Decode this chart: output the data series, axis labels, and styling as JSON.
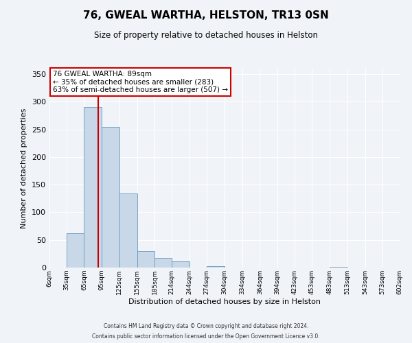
{
  "title": "76, GWEAL WARTHA, HELSTON, TR13 0SN",
  "subtitle": "Size of property relative to detached houses in Helston",
  "xlabel": "Distribution of detached houses by size in Helston",
  "ylabel": "Number of detached properties",
  "bin_edges": [
    6,
    35,
    65,
    95,
    125,
    155,
    185,
    214,
    244,
    274,
    304,
    334,
    364,
    394,
    423,
    453,
    483,
    513,
    543,
    573,
    602
  ],
  "bin_labels": [
    "6sqm",
    "35sqm",
    "65sqm",
    "95sqm",
    "125sqm",
    "155sqm",
    "185sqm",
    "214sqm",
    "244sqm",
    "274sqm",
    "304sqm",
    "334sqm",
    "364sqm",
    "394sqm",
    "423sqm",
    "453sqm",
    "483sqm",
    "513sqm",
    "543sqm",
    "573sqm",
    "602sqm"
  ],
  "counts": [
    0,
    62,
    291,
    255,
    134,
    30,
    18,
    11,
    0,
    3,
    0,
    0,
    0,
    0,
    0,
    0,
    1,
    0,
    0,
    0
  ],
  "bar_color": "#c8d8e8",
  "bar_edge_color": "#6699bb",
  "vline_x": 89,
  "vline_color": "#cc0000",
  "annotation_text": "76 GWEAL WARTHA: 89sqm\n← 35% of detached houses are smaller (283)\n63% of semi-detached houses are larger (507) →",
  "annotation_box_color": "#ffffff",
  "annotation_box_edge": "#cc0000",
  "ylim": [
    0,
    360
  ],
  "yticks": [
    0,
    50,
    100,
    150,
    200,
    250,
    300,
    350
  ],
  "bg_color": "#f0f4f8",
  "footer_line1": "Contains HM Land Registry data © Crown copyright and database right 2024.",
  "footer_line2": "Contains public sector information licensed under the Open Government Licence v3.0."
}
